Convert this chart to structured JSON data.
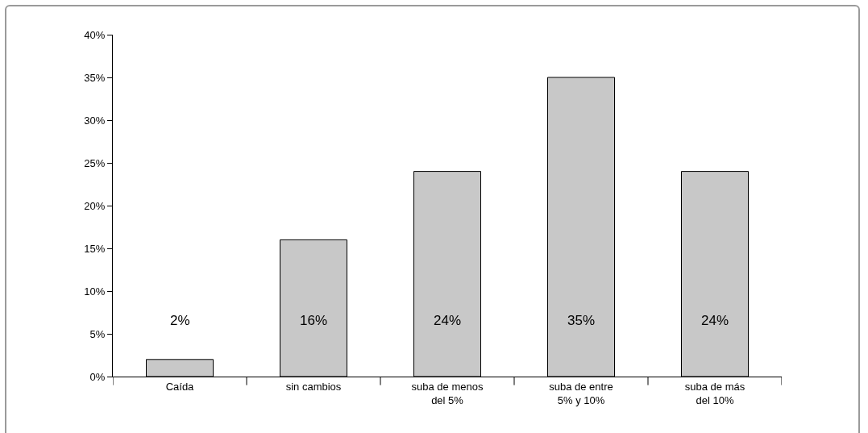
{
  "chart_data": {
    "type": "bar",
    "categories": [
      "Caída",
      "sin cambios",
      "suba de menos del 5%",
      "suba de entre 5% y 10%",
      "suba de más del 10%"
    ],
    "values": [
      2,
      16,
      24,
      35,
      24
    ],
    "color": "#c8c8c8",
    "value_labels": [
      "2%",
      "16%",
      "24%",
      "35%",
      "24%"
    ],
    "ylim": [
      0,
      40
    ],
    "yticks": [
      {
        "value": 0,
        "label": "0%"
      },
      {
        "value": 5,
        "label": "5%"
      },
      {
        "value": 10,
        "label": "10%"
      },
      {
        "value": 15,
        "label": "15%"
      },
      {
        "value": 20,
        "label": "20%"
      },
      {
        "value": 25,
        "label": "25%"
      },
      {
        "value": 30,
        "label": "30%"
      },
      {
        "value": 35,
        "label": "35%"
      },
      {
        "value": 40,
        "label": "40%"
      }
    ],
    "grid": false
  }
}
